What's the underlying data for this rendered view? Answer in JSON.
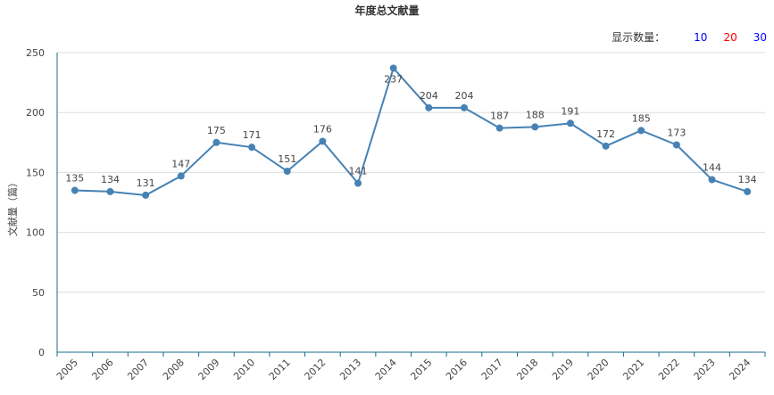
{
  "title": "年度总文献量",
  "display_count": {
    "label": "显示数量：",
    "options": [
      {
        "label": "10",
        "color": "#0000ff"
      },
      {
        "label": "20",
        "color": "#ff0000"
      },
      {
        "label": "30",
        "color": "#0000ff"
      }
    ]
  },
  "chart_data": {
    "type": "line",
    "title": "年度总文献量",
    "xlabel": "",
    "ylabel": "文献量（篇）",
    "x": [
      "2005",
      "2006",
      "2007",
      "2008",
      "2009",
      "2010",
      "2011",
      "2012",
      "2013",
      "2014",
      "2015",
      "2016",
      "2017",
      "2018",
      "2019",
      "2020",
      "2021",
      "2022",
      "2023",
      "2024"
    ],
    "values": [
      135,
      134,
      131,
      147,
      175,
      171,
      151,
      176,
      141,
      237,
      204,
      204,
      187,
      188,
      191,
      172,
      185,
      173,
      144,
      134
    ],
    "ylim": [
      0,
      250
    ],
    "yticks": [
      0,
      50,
      100,
      150,
      200,
      250
    ],
    "grid": true,
    "line_color": "#4682b4",
    "axis_color": "#1e6b8c"
  }
}
